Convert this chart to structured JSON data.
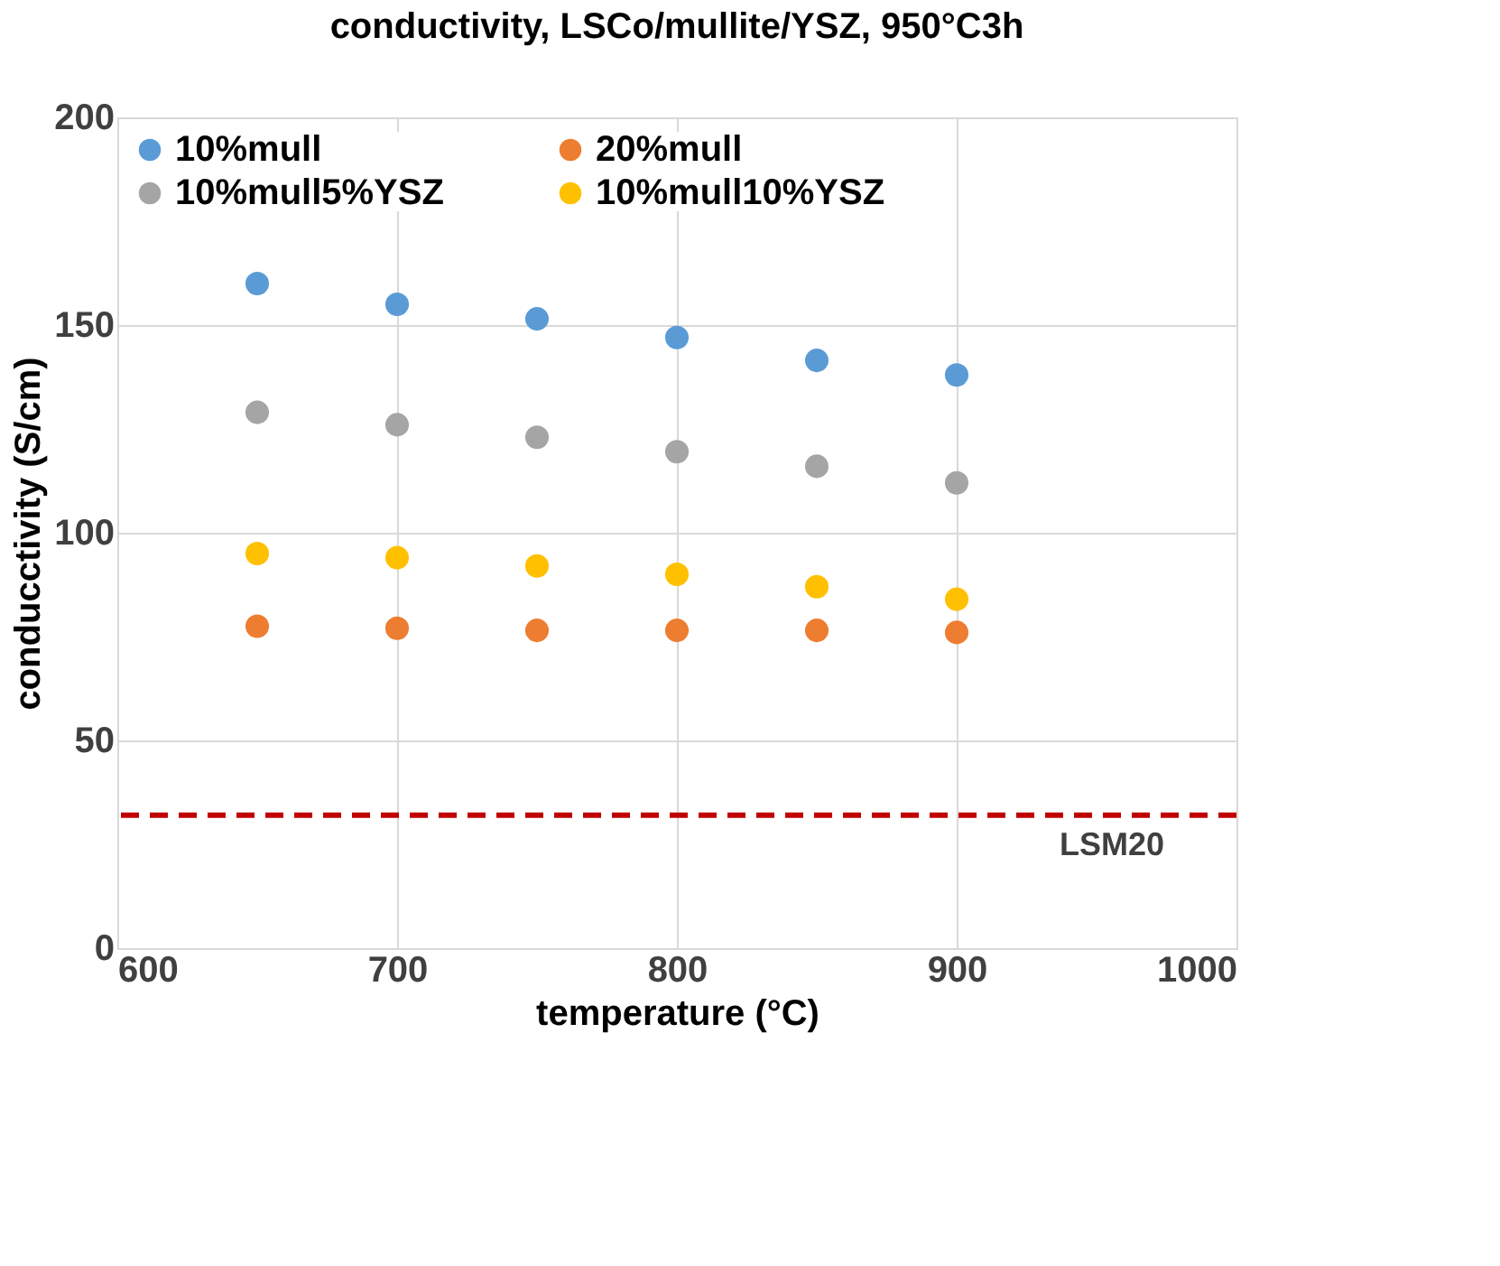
{
  "chart_data": {
    "type": "scatter",
    "title": "conductivity, LSCo/mullite/YSZ, 950°C3h",
    "xlabel": "temperature (°C)",
    "ylabel": "conducctivity (S/cm)",
    "x": [
      650,
      700,
      750,
      800,
      850,
      900
    ],
    "series": [
      {
        "name": "10%mull",
        "color": "#5b9bd5",
        "values": [
          160,
          155,
          151.5,
          147,
          141.5,
          138
        ]
      },
      {
        "name": "20%mull",
        "color": "#ed7d31",
        "values": [
          77.5,
          77,
          76.5,
          76.5,
          76.5,
          76
        ]
      },
      {
        "name": "10%mull5%YSZ",
        "color": "#a5a5a5",
        "values": [
          129,
          126,
          123,
          119.5,
          116,
          112
        ]
      },
      {
        "name": "10%mull10%YSZ",
        "color": "#ffc000",
        "values": [
          95,
          94,
          92,
          90,
          87,
          84
        ]
      }
    ],
    "xlim": [
      600,
      1000
    ],
    "xticks": [
      600,
      700,
      800,
      900,
      1000
    ],
    "ylim": [
      0,
      200
    ],
    "yticks": [
      0,
      50,
      100,
      150,
      200
    ],
    "ref_lines": [
      {
        "axis": "y",
        "value": 32,
        "label": "LSM20",
        "color": "#c00000",
        "line_style": "dashed"
      }
    ],
    "grid": true,
    "legend": "top",
    "marker": "circle"
  }
}
